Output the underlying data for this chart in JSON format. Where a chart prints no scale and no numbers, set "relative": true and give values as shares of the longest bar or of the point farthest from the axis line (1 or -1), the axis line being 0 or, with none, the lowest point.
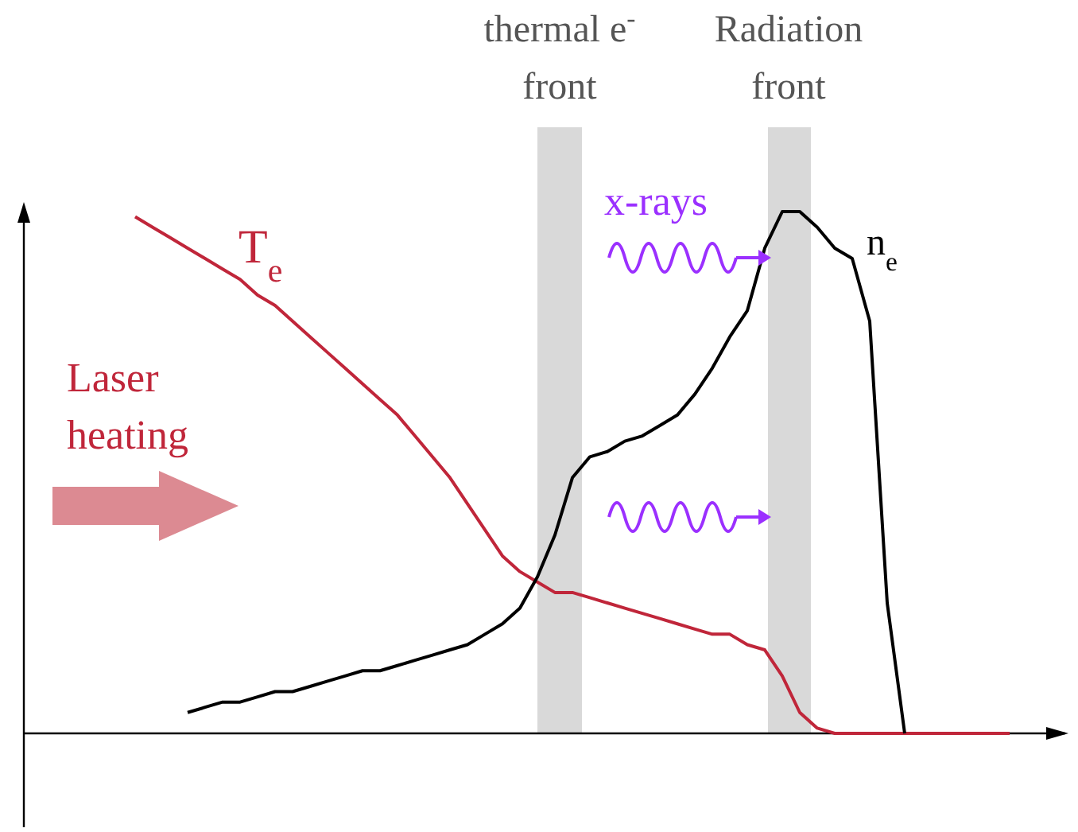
{
  "chart_data": {
    "type": "line",
    "relative": true,
    "marker": "none",
    "line_style": "solid",
    "categories": [
      null,
      null,
      null,
      null,
      null,
      null,
      null,
      null,
      null,
      null,
      null,
      null,
      null,
      null,
      null,
      null,
      null,
      null,
      null,
      null,
      null,
      null,
      null,
      null,
      null,
      null,
      null,
      null,
      null,
      null,
      null,
      null,
      null,
      null,
      null,
      null,
      null,
      null,
      null,
      null,
      null,
      null,
      null,
      null,
      null,
      null,
      null,
      null,
      null,
      null,
      null
    ],
    "series": [
      {
        "name": "T$_{e}$",
        "color": "#c0263a",
        "values": [
          0.99,
          0.97,
          0.95,
          0.93,
          0.91,
          0.89,
          0.87,
          0.84,
          0.82,
          0.79,
          0.76,
          0.73,
          0.7,
          0.67,
          0.64,
          0.61,
          0.57,
          0.53,
          0.49,
          0.44,
          0.39,
          0.34,
          0.31,
          0.29,
          0.27,
          0.27,
          0.26,
          0.25,
          0.24,
          0.23,
          0.22,
          0.21,
          0.2,
          0.19,
          0.19,
          0.17,
          0.16,
          0.11,
          0.04,
          0.01,
          0,
          0,
          0,
          0,
          0,
          0,
          0,
          0,
          0,
          0,
          0
        ]
      },
      {
        "name": "n$_{e}$",
        "color": "#000000",
        "values": [
          null,
          null,
          null,
          0.04,
          0.05,
          0.06,
          0.06,
          0.07,
          0.08,
          0.08,
          0.09,
          0.1,
          0.11,
          0.12,
          0.12,
          0.13,
          0.14,
          0.15,
          0.16,
          0.17,
          0.19,
          0.21,
          0.24,
          0.3,
          0.38,
          0.49,
          0.53,
          0.54,
          0.56,
          0.57,
          0.59,
          0.61,
          0.65,
          0.7,
          0.76,
          0.81,
          0.93,
          1,
          1,
          0.97,
          0.93,
          0.91,
          0.79,
          0.25,
          0,
          null,
          null,
          null,
          null,
          null,
          null
        ]
      }
    ],
    "annotations": [
      "thermal e$^{-}$ front",
      "Radiation front",
      "x-rays",
      "Laser heating"
    ]
  }
}
